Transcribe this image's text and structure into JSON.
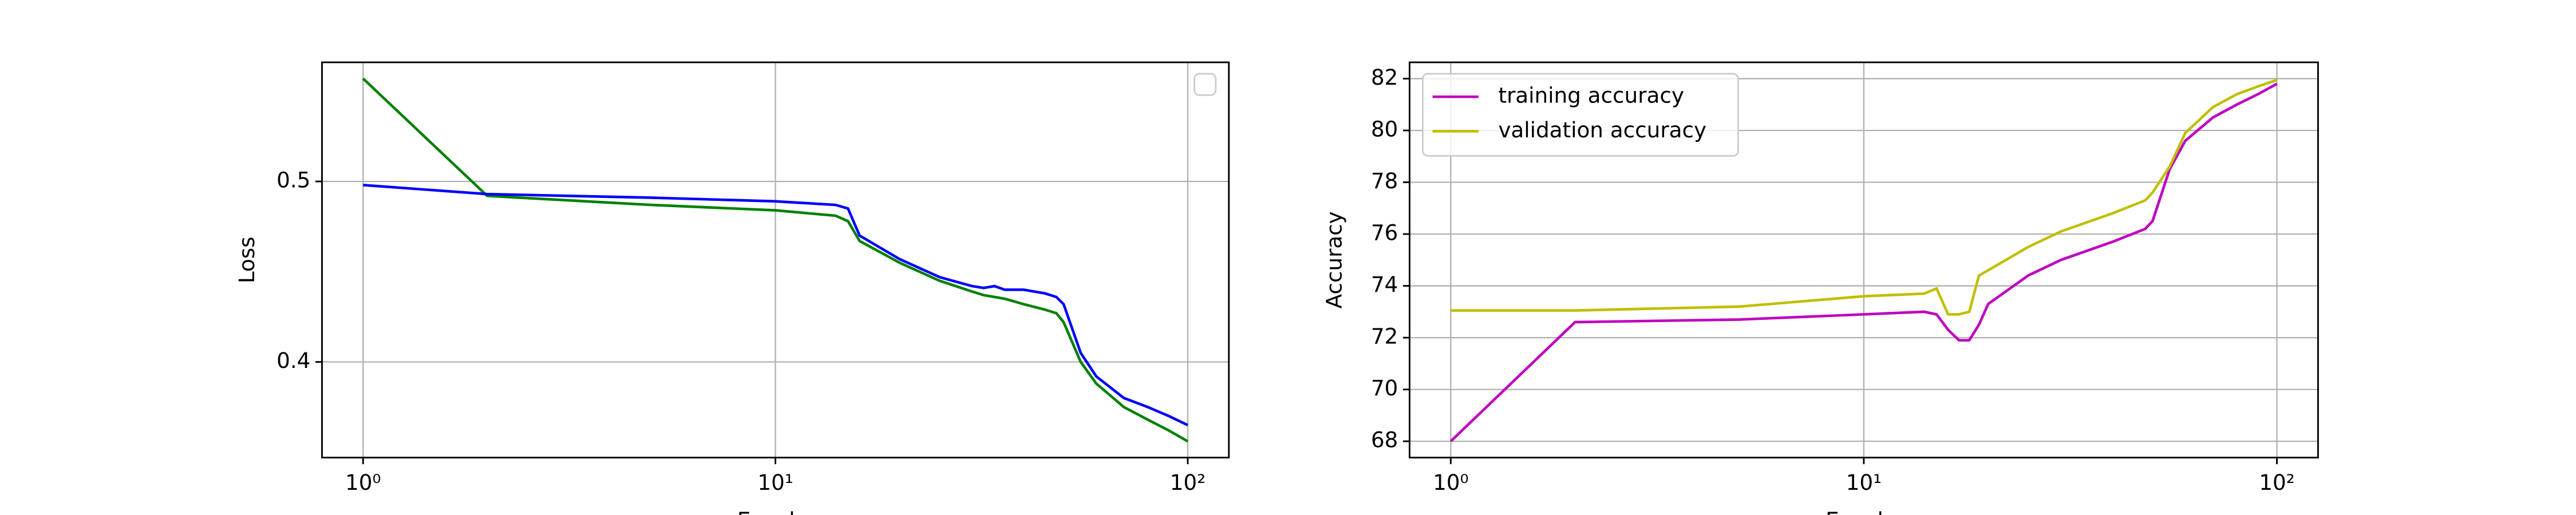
{
  "chart_data": [
    {
      "type": "line",
      "xlabel": "Epochs",
      "ylabel": "Loss",
      "xscale": "log",
      "grid": true,
      "legend": "upper right",
      "x": [
        1,
        2,
        5,
        10,
        14,
        15,
        16,
        20,
        25,
        30,
        32,
        34,
        36,
        40,
        45,
        48,
        50,
        55,
        60,
        70,
        80,
        90,
        100
      ],
      "series": [
        {
          "color": "#008000",
          "values": [
            0.557,
            0.492,
            0.487,
            0.484,
            0.481,
            0.478,
            0.467,
            0.455,
            0.445,
            0.439,
            0.437,
            0.436,
            0.435,
            0.432,
            0.429,
            0.427,
            0.422,
            0.4,
            0.388,
            0.375,
            0.368,
            0.362,
            0.356
          ]
        },
        {
          "color": "#0000ff",
          "values": [
            0.498,
            0.493,
            0.491,
            0.489,
            0.487,
            0.485,
            0.47,
            0.457,
            0.447,
            0.442,
            0.441,
            0.442,
            0.44,
            0.44,
            0.438,
            0.436,
            0.432,
            0.405,
            0.392,
            0.38,
            0.375,
            0.37,
            0.365
          ]
        }
      ],
      "xlim": [
        0.795,
        125.8
      ],
      "ylim": [
        0.347,
        0.566
      ],
      "xticks": [
        {
          "value": 1,
          "label": "10⁰"
        },
        {
          "value": 10,
          "label": "10¹"
        },
        {
          "value": 100,
          "label": "10²"
        }
      ],
      "yticks": [
        0.4,
        0.5
      ]
    },
    {
      "type": "line",
      "xlabel": "Epochs",
      "ylabel": "Accuracy",
      "xscale": "log",
      "grid": true,
      "legend": "upper left",
      "x": [
        1,
        2,
        5,
        10,
        14,
        15,
        16,
        17,
        18,
        19,
        20,
        25,
        30,
        40,
        48,
        50,
        55,
        60,
        70,
        80,
        90,
        100
      ],
      "series": [
        {
          "name": "training accuracy",
          "color": "#bf00bf",
          "values": [
            68.0,
            72.6,
            72.7,
            72.9,
            73.0,
            72.9,
            72.3,
            71.9,
            71.9,
            72.5,
            73.3,
            74.4,
            75.0,
            75.7,
            76.2,
            76.5,
            78.5,
            79.6,
            80.5,
            81.0,
            81.4,
            81.8
          ]
        },
        {
          "name": "validation accuracy",
          "color": "#bfbf00",
          "values": [
            73.05,
            73.05,
            73.2,
            73.6,
            73.7,
            73.9,
            72.9,
            72.9,
            73.0,
            74.4,
            74.6,
            75.5,
            76.1,
            76.8,
            77.3,
            77.6,
            78.6,
            79.9,
            80.9,
            81.4,
            81.7,
            81.95
          ]
        }
      ],
      "xlim": [
        0.795,
        125.8
      ],
      "ylim": [
        67.37,
        82.63
      ],
      "xticks": [
        {
          "value": 1,
          "label": "10⁰"
        },
        {
          "value": 10,
          "label": "10¹"
        },
        {
          "value": 100,
          "label": "10²"
        }
      ],
      "yticks": [
        68,
        70,
        72,
        74,
        76,
        78,
        80,
        82
      ]
    }
  ]
}
